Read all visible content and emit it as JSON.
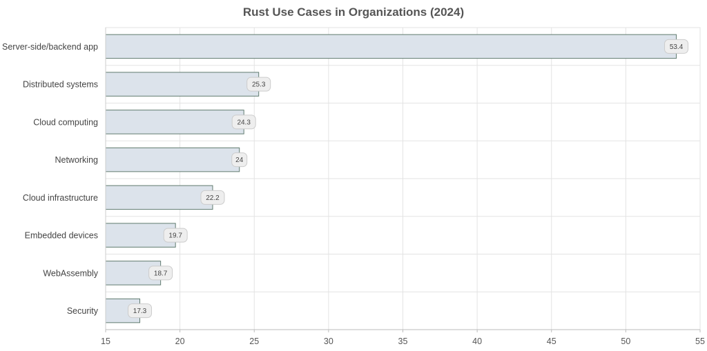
{
  "chart_data": {
    "type": "bar",
    "orientation": "horizontal",
    "title": "Rust Use Cases in Organizations (2024)",
    "xlabel": "",
    "ylabel": "",
    "categories": [
      "Server-side/backend app",
      "Distributed systems",
      "Cloud computing",
      "Networking",
      "Cloud infrastructure",
      "Embedded devices",
      "WebAssembly",
      "Security"
    ],
    "values": [
      53.4,
      25.3,
      24.3,
      24,
      22.2,
      19.7,
      18.7,
      17.3
    ],
    "xlim": [
      15,
      55
    ],
    "xticks": [
      15,
      20,
      25,
      30,
      35,
      40,
      45,
      50,
      55
    ],
    "grid": true,
    "colors": {
      "bar_fill": "#dce3eb",
      "bar_stroke": "#5f7a6e",
      "grid": "#e3e3e3",
      "label_box_fill": "#eeeeee",
      "label_box_stroke": "#cccccc"
    }
  }
}
